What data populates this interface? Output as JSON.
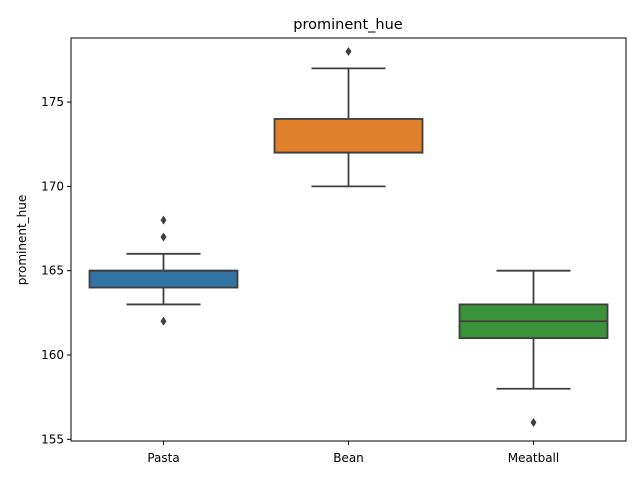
{
  "chart_data": {
    "type": "box",
    "title": "prominent_hue",
    "xlabel": "",
    "ylabel": "prominent_hue",
    "ylim": [
      154.9,
      178.8
    ],
    "yticks": [
      155,
      160,
      165,
      170,
      175
    ],
    "categories": [
      "Pasta",
      "Bean",
      "Meatball"
    ],
    "colors": [
      "#3274a1",
      "#e1812c",
      "#3a923a"
    ],
    "boxes": [
      {
        "category": "Pasta",
        "whisker_low": 163,
        "q1": 164,
        "median": 165,
        "q3": 165,
        "whisker_high": 166,
        "fliers": [
          162,
          167,
          168
        ]
      },
      {
        "category": "Bean",
        "whisker_low": 170,
        "q1": 172,
        "median": 172,
        "q3": 174,
        "whisker_high": 177,
        "fliers": [
          178
        ]
      },
      {
        "category": "Meatball",
        "whisker_low": 158,
        "q1": 161,
        "median": 162,
        "q3": 163,
        "whisker_high": 165,
        "fliers": [
          156
        ]
      }
    ]
  }
}
